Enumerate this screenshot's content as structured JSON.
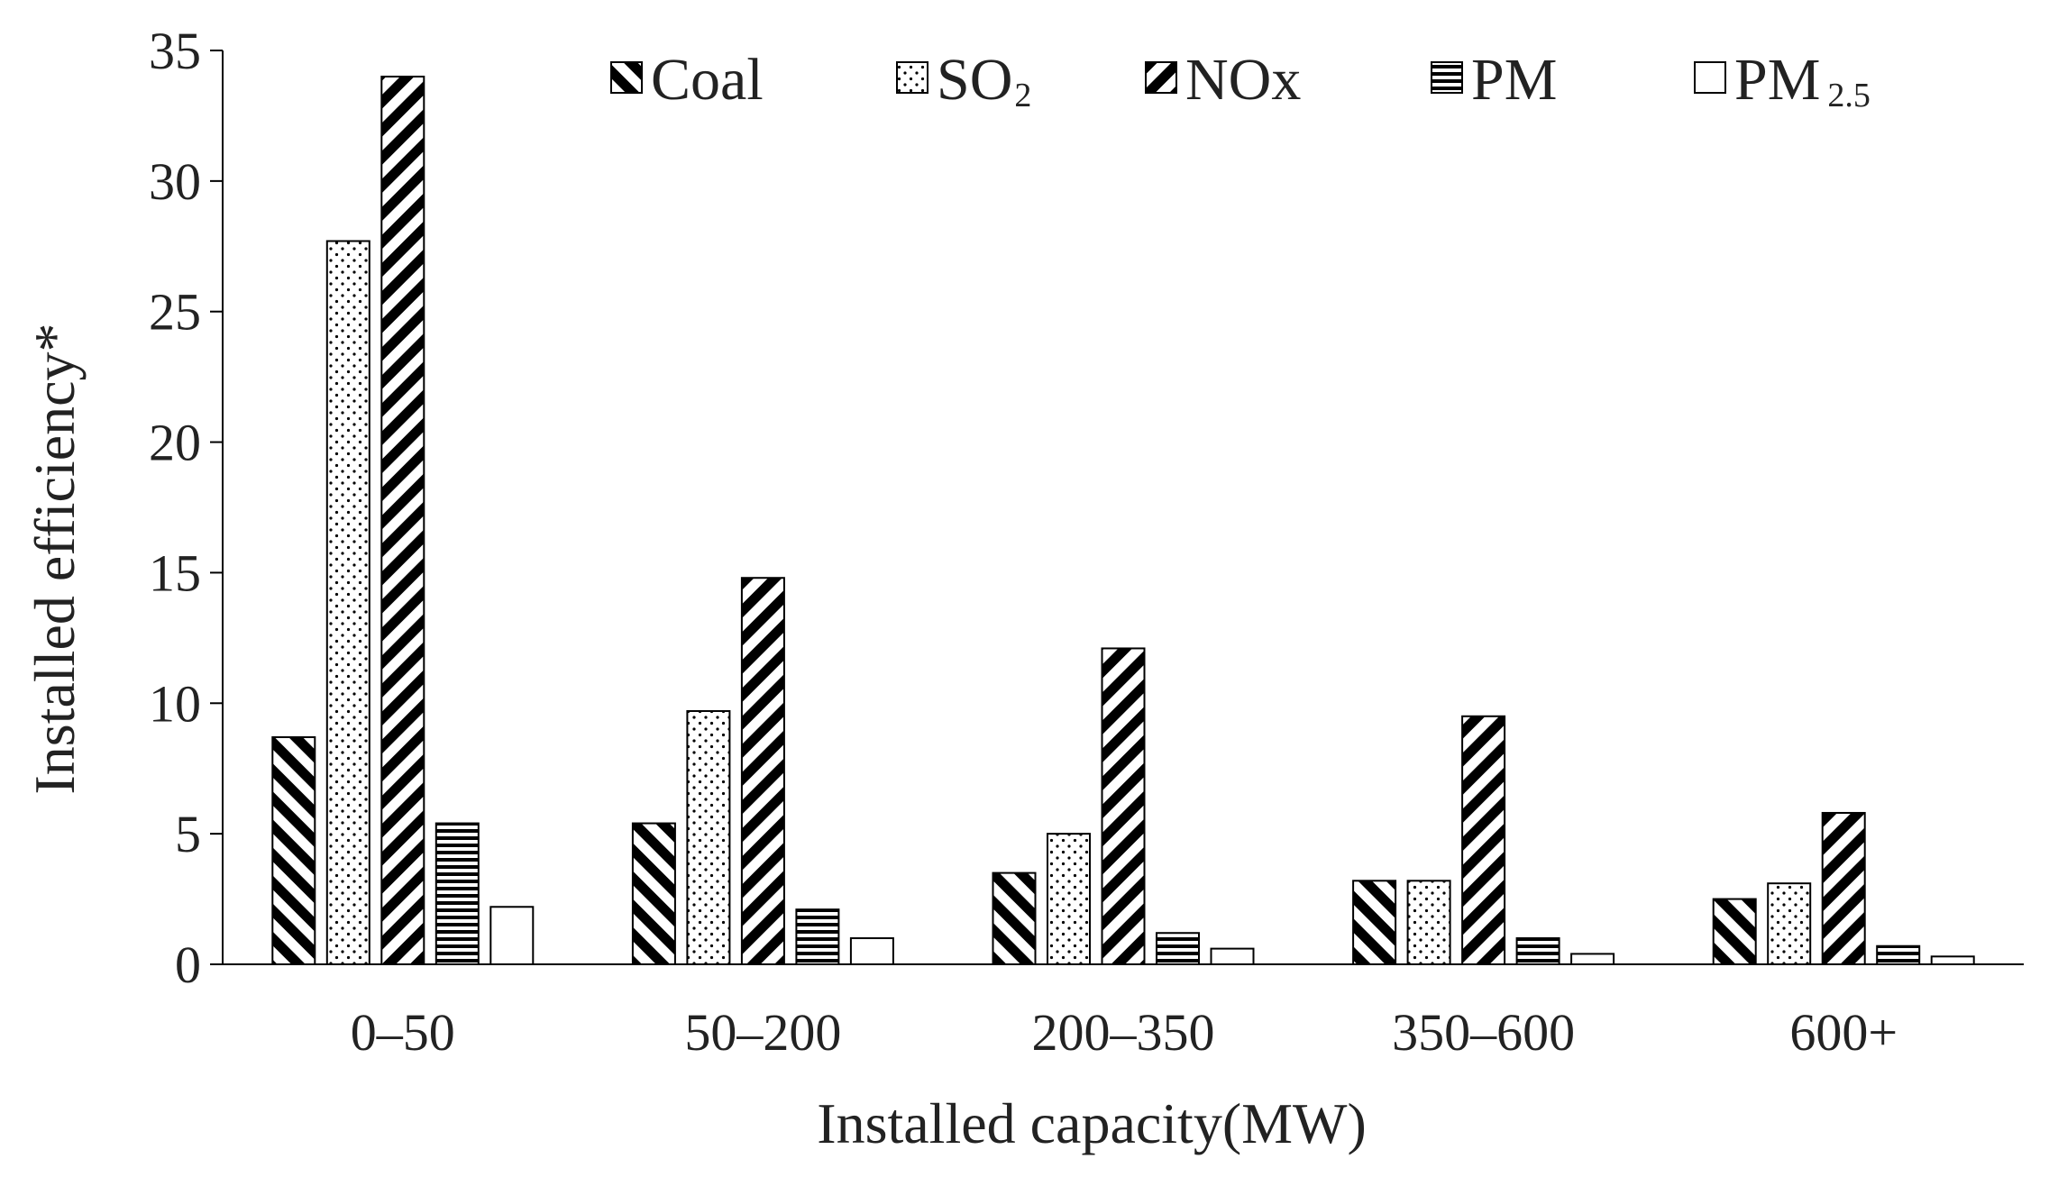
{
  "chart_data": {
    "type": "bar",
    "title": "",
    "xlabel": "Installed capacity(MW)",
    "ylabel": "Installed efficiency*",
    "categories": [
      "0–50",
      "50–200",
      "200–350",
      "350–600",
      "600+"
    ],
    "ylim": [
      0,
      35
    ],
    "yticks": [
      0,
      5,
      10,
      15,
      20,
      25,
      30,
      35
    ],
    "grid": false,
    "legend_position": "top",
    "series": [
      {
        "name": "Coal",
        "label_main": "Coal",
        "label_sub": "",
        "pattern": "back-diagonal",
        "values": [
          8.7,
          5.4,
          3.5,
          3.2,
          2.5
        ]
      },
      {
        "name": "SO2",
        "label_main": "SO",
        "label_sub": "2",
        "pattern": "dots",
        "values": [
          27.7,
          9.7,
          5.0,
          3.2,
          3.1
        ]
      },
      {
        "name": "NOx",
        "label_main": "NOx",
        "label_sub": "",
        "pattern": "forward-diagonal",
        "values": [
          34.0,
          14.8,
          12.1,
          9.5,
          5.8
        ]
      },
      {
        "name": "PM",
        "label_main": "PM",
        "label_sub": "",
        "pattern": "horizontal",
        "values": [
          5.4,
          2.1,
          1.2,
          1.0,
          0.7
        ]
      },
      {
        "name": "PM2.5",
        "label_main": "PM",
        "label_sub": "2.5",
        "pattern": "none",
        "values": [
          2.2,
          1.0,
          0.6,
          0.4,
          0.3
        ]
      }
    ]
  }
}
